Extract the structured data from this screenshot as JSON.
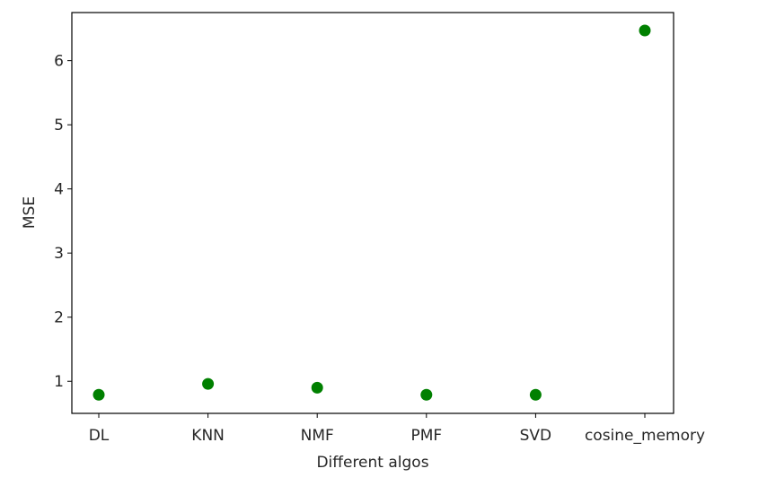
{
  "chart_data": {
    "type": "scatter",
    "title": "",
    "xlabel": "Different algos",
    "ylabel": "MSE",
    "categories": [
      "DL",
      "KNN",
      "NMF",
      "PMF",
      "SVD",
      "cosine_memory"
    ],
    "values": [
      0.79,
      0.96,
      0.9,
      0.79,
      0.79,
      6.47
    ],
    "ylim": [
      0.5,
      6.75
    ],
    "yticks": [
      1,
      2,
      3,
      4,
      5,
      6
    ],
    "marker_color": "#008000",
    "grid": false,
    "legend": "none"
  }
}
